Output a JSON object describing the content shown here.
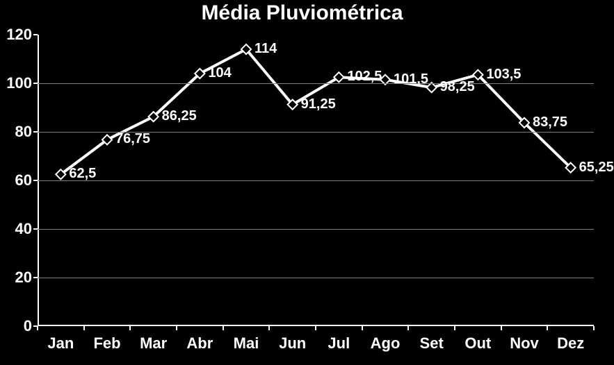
{
  "title": "Média Pluviométrica",
  "chart": {
    "type": "line",
    "background_color": "#000000",
    "line_color": "#ffffff",
    "line_width": 4,
    "marker_shape": "diamond",
    "marker_size": 10,
    "marker_fill": "#000000",
    "marker_border_color": "#ffffff",
    "marker_border_width": 2,
    "grid_color": "#808080",
    "axis_color": "#ffffff",
    "text_color": "#ffffff",
    "title_fontsize": 30,
    "tick_fontsize": 22,
    "datalabel_fontsize": 20,
    "ylim_min": 0,
    "ylim_max": 120,
    "ytick_step": 20,
    "categories": [
      "Jan",
      "Feb",
      "Mar",
      "Abr",
      "Mai",
      "Jun",
      "Jul",
      "Ago",
      "Set",
      "Out",
      "Nov",
      "Dez"
    ],
    "values": [
      62.5,
      76.75,
      86.25,
      104,
      114,
      91.25,
      102.5,
      101.5,
      98.25,
      103.5,
      83.75,
      65.25
    ],
    "value_labels": [
      "62,5",
      "76,75",
      "86,25",
      "104",
      "114",
      "91,25",
      "102,5",
      "101,5",
      "98,25",
      "103,5",
      "83,75",
      "65,25"
    ]
  }
}
